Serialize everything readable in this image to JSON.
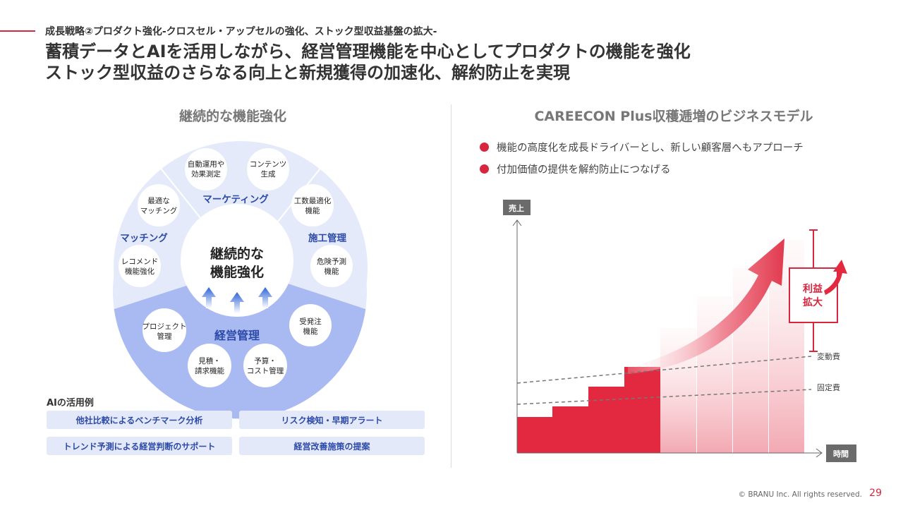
{
  "header": {
    "subtitle": "成長戦略②プロダクト強化-クロスセル・アップセルの強化、ストック型収益基盤の拡大-",
    "headline_line1": "蓄積データとAIを活用しながら、経営管理機能を中心としてプロダクトの機能を強化",
    "headline_line2": "ストック型収益のさらなる向上と新規獲得の加速化、解約防止を実現"
  },
  "left": {
    "title": "継続的な機能強化",
    "center_line1": "継続的な",
    "center_line2": "機能強化",
    "segments": {
      "marketing": "マーケティング",
      "matching": "マッチング",
      "construction": "施工管理",
      "management": "経営管理"
    },
    "features": {
      "auto_ops_1": "自動運用や",
      "auto_ops_2": "効果測定",
      "content_1": "コンテンツ",
      "content_2": "生成",
      "optimal_match_1": "最適な",
      "optimal_match_2": "マッチング",
      "workload_1": "工数最適化",
      "workload_2": "機能",
      "recommend_1": "レコメンド",
      "recommend_2": "機能強化",
      "risk_pred_1": "危険予測",
      "risk_pred_2": "機能",
      "project_1": "プロジェクト",
      "project_2": "管理",
      "order_1": "受発注",
      "order_2": "機能",
      "estimate_1": "見積・",
      "estimate_2": "請求機能",
      "budget_1": "予算・",
      "budget_2": "コスト管理"
    },
    "ai_label": "AIの活用例",
    "ai_examples": [
      "他社比較によるベンチマーク分析",
      "リスク検知・早期アラート",
      "トレンド予測による経営判断のサポート",
      "経営改善施策の提案"
    ]
  },
  "right": {
    "title": "CAREECON Plus収穫逓増のビジネスモデル",
    "bullets": [
      "機能の高度化を成長ドライバーとし、新しい顧客層へもアプローチ",
      "付加価値の提供を解約防止につなげる"
    ],
    "chart": {
      "y_axis_label": "売上",
      "x_axis_label": "時間",
      "variable_cost_label": "変動費",
      "fixed_cost_label": "固定費",
      "profit_label_1": "利益",
      "profit_label_2": "拡大"
    }
  },
  "footer": {
    "copyright": "© BRANU Inc. All rights reserved.",
    "page": "29"
  },
  "colors": {
    "accent": "#d7263d",
    "blue_text": "#2c4aa8",
    "ring_light": "#e5eafa",
    "ring_dark": "#a9baf2"
  }
}
